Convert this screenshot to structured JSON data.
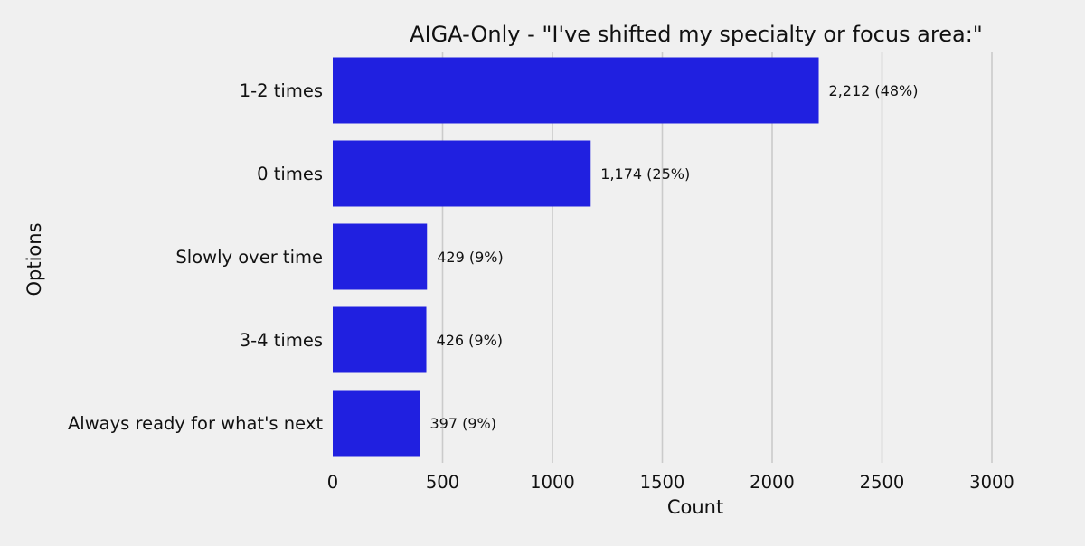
{
  "chart_data": {
    "type": "bar",
    "orientation": "horizontal",
    "title": "AIGA-Only - \"I've shifted my specialty or focus area:\"",
    "xlabel": "Count",
    "ylabel": "Options",
    "categories": [
      "1-2 times",
      "0 times",
      "Slowly over time",
      "3-4 times",
      "Always ready for what's next"
    ],
    "values": [
      2212,
      1174,
      429,
      426,
      397
    ],
    "data_labels": [
      "2,212 (48%)",
      "1,174 (25%)",
      "429 (9%)",
      "426 (9%)",
      "397 (9%)"
    ],
    "xlim": [
      0,
      3000
    ],
    "xticks": [
      0,
      500,
      1000,
      1500,
      2000,
      2500,
      3000
    ],
    "xtick_labels": [
      "0",
      "500",
      "1000",
      "1500",
      "2000",
      "2500",
      "3000"
    ],
    "grid": "vertical",
    "bar_color": "#2020e0",
    "background_color": "#f0f0f0"
  }
}
